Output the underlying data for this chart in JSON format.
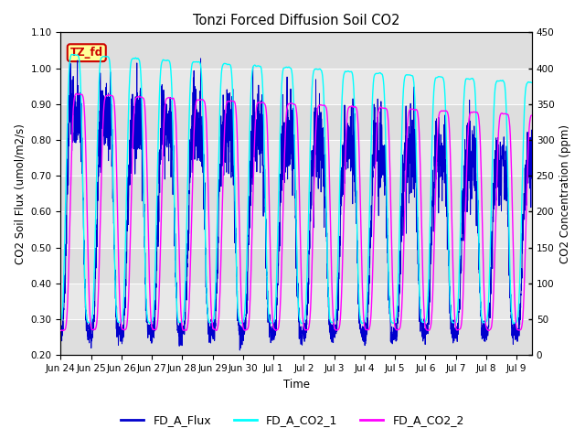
{
  "title": "Tonzi Forced Diffusion Soil CO2",
  "xlabel": "Time",
  "ylabel_left": "CO2 Soil Flux (umol/m2/s)",
  "ylabel_right": "CO2 Concentration (ppm)",
  "ylim_left": [
    0.2,
    1.1
  ],
  "ylim_right": [
    0,
    450
  ],
  "yticks_left": [
    0.2,
    0.3,
    0.4,
    0.5,
    0.6,
    0.7,
    0.8,
    0.9,
    1.0,
    1.1
  ],
  "yticks_right": [
    0,
    50,
    100,
    150,
    200,
    250,
    300,
    350,
    400,
    450
  ],
  "xtick_labels": [
    "Jun 24",
    "Jun 25",
    "Jun 26",
    "Jun 27",
    "Jun 28",
    "Jun 29",
    "Jun 30",
    "Jul 1",
    "Jul 2",
    "Jul 3",
    "Jul 4",
    "Jul 5",
    "Jul 6",
    "Jul 7",
    "Jul 8",
    "Jul 9"
  ],
  "flux_color": "#0000CD",
  "co2_1_color": "#00FFFF",
  "co2_2_color": "#FF00FF",
  "bg_color": "#E8E8E8",
  "legend_labels": [
    "FD_A_Flux",
    "FD_A_CO2_1",
    "FD_A_CO2_2"
  ],
  "tag_text": "TZ_fd",
  "tag_bg": "#FFFF99",
  "tag_border": "#CC0000",
  "tag_text_color": "#CC0000",
  "n_days": 15.5,
  "n_points": 3000
}
